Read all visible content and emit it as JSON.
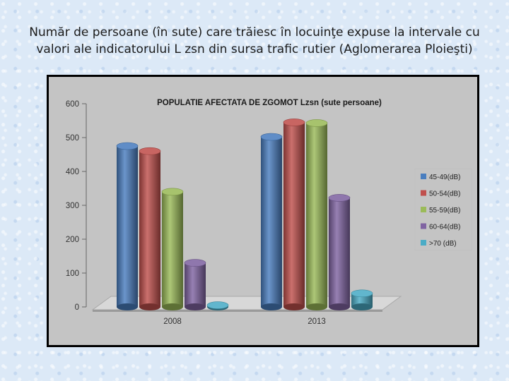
{
  "slide": {
    "title_line1": "Număr de persoane (în sute) care trăiesc în locuinţe expuse la intervale cu",
    "title_line2": "valori ale indicatorului L zsn din sursa trafic rutier (Aglomerarea Ploieşti)"
  },
  "chart_data": {
    "type": "bar",
    "title": "POPULATIE AFECTATA DE ZGOMOT  Lzsn  (sute persoane)",
    "categories": [
      "2008",
      "2013"
    ],
    "series": [
      {
        "name": "45-49(dB)",
        "color": "#4a7ebf",
        "values": [
          475,
          502
        ]
      },
      {
        "name": "50-54(dB)",
        "color": "#c0504d",
        "values": [
          460,
          545
        ]
      },
      {
        "name": "55-59(dB)",
        "color": "#9bbb59",
        "values": [
          340,
          543
        ]
      },
      {
        "name": "60-64(dB)",
        "color": "#8064a2",
        "values": [
          130,
          322
        ]
      },
      {
        "name": ">70 (dB)",
        "color": "#4bacc6",
        "values": [
          5,
          40
        ]
      }
    ],
    "y_ticks": [
      "0",
      "100",
      "200",
      "300",
      "400",
      "500",
      "600"
    ],
    "ylim": [
      0,
      600
    ],
    "grid": false,
    "legend_position": "right",
    "plot_background": "#c3c3c3"
  }
}
